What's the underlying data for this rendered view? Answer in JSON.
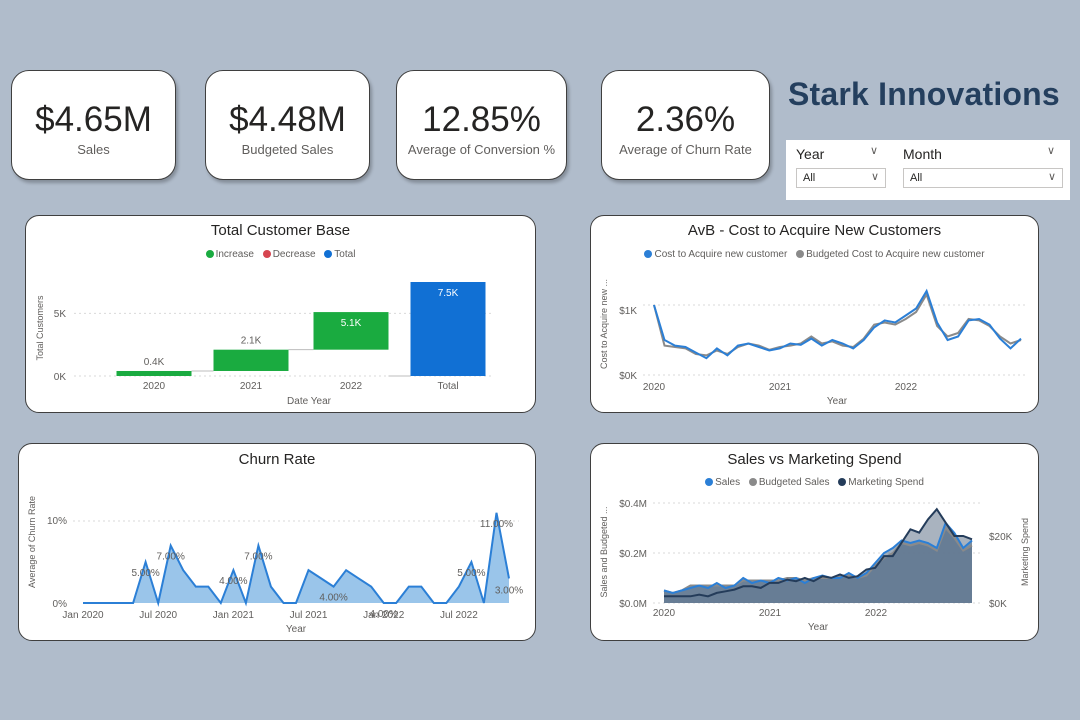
{
  "kpis": [
    {
      "value": "$4.65M",
      "label": "Sales"
    },
    {
      "value": "$4.48M",
      "label": "Budgeted Sales"
    },
    {
      "value": "12.85%",
      "label": "Average of Conversion %"
    },
    {
      "value": "2.36%",
      "label": "Average of Churn Rate"
    }
  ],
  "brand": {
    "title": "Stark Innovations"
  },
  "filters": {
    "year": {
      "label": "Year",
      "value": "All"
    },
    "month": {
      "label": "Month",
      "value": "All"
    }
  },
  "icons": {
    "dropdown": "chevron-down-icon"
  },
  "colors": {
    "increase": "#1aab40",
    "decrease": "#d64550",
    "total": "#1170d4",
    "actual_line": "#2b7fd6",
    "budget_line": "#8a8a8a",
    "marketing": "#243c5a",
    "background": "#b0bccb",
    "brand": "#243f5e"
  },
  "charts": {
    "customer_base": {
      "title": "Total Customer Base",
      "legend": [
        "Increase",
        "Decrease",
        "Total"
      ],
      "xlabel": "Date Year",
      "ylabel": "Total Customers",
      "yticks": [
        "0K",
        "5K"
      ],
      "data_labels": [
        "0.4K",
        "2.1K",
        "5.1K",
        "7.5K"
      ],
      "categories": [
        "2020",
        "2021",
        "2022",
        "Total"
      ]
    },
    "cac": {
      "title": "AvB - Cost to Acquire New Customers",
      "legend": [
        "Cost to Acquire new customer",
        "Budgeted Cost to Acquire new customer"
      ],
      "xlabel": "Year",
      "ylabel": "Cost to Acquire new ...",
      "yticks": [
        "$0K",
        "$1K"
      ],
      "xticks": [
        "2020",
        "2021",
        "2022"
      ]
    },
    "churn": {
      "title": "Churn Rate",
      "xlabel": "Year",
      "ylabel": "Average of Churn Rate",
      "yticks": [
        "0%",
        "10%"
      ],
      "xticks": [
        "Jan 2020",
        "Jul 2020",
        "Jan 2021",
        "Jul 2021",
        "Jan 2022",
        "Jul 2022"
      ],
      "data_labels": [
        "5.00%",
        "7.00%",
        "4.00%",
        "7.00%",
        "4.00%",
        "4.00%",
        "5.00%",
        "11.00%",
        "3.00%"
      ]
    },
    "sales_marketing": {
      "title": "Sales vs Marketing Spend",
      "legend": [
        "Sales",
        "Budgeted Sales",
        "Marketing Spend"
      ],
      "xlabel": "Year",
      "ylabel_left": "Sales and Budgeted ...",
      "ylabel_right": "Marketing Spend",
      "yticks_left": [
        "$0.0M",
        "$0.2M",
        "$0.4M"
      ],
      "yticks_right": [
        "$0K",
        "$20K"
      ],
      "xticks": [
        "2020",
        "2021",
        "2022"
      ]
    }
  },
  "chart_data": [
    {
      "type": "bar",
      "title": "Total Customer Base",
      "subtype": "waterfall",
      "categories": [
        "2020",
        "2021",
        "2022",
        "Total"
      ],
      "values": [
        0.4,
        2.1,
        5.1,
        7.5
      ],
      "kinds": [
        "Increase",
        "Increase",
        "Increase",
        "Total"
      ],
      "units": "K",
      "ylim": [
        0,
        8.5
      ],
      "xlabel": "Date Year",
      "ylabel": "Total Customers"
    },
    {
      "type": "line",
      "title": "AvB - Cost to Acquire New Customers",
      "x_range": [
        2020,
        2022.9
      ],
      "ylim": [
        0,
        1.3
      ],
      "units": "$K",
      "series": [
        {
          "name": "Cost to Acquire new customer",
          "values": [
            1.0,
            0.5,
            0.42,
            0.4,
            0.32,
            0.24,
            0.38,
            0.28,
            0.42,
            0.45,
            0.4,
            0.35,
            0.38,
            0.45,
            0.43,
            0.52,
            0.42,
            0.5,
            0.45,
            0.38,
            0.5,
            0.68,
            0.78,
            0.75,
            0.85,
            0.95,
            1.2,
            0.75,
            0.5,
            0.55,
            0.78,
            0.8,
            0.72,
            0.52,
            0.38,
            0.52
          ]
        },
        {
          "name": "Budgeted Cost to Acquire new customer",
          "values": [
            1.0,
            0.42,
            0.4,
            0.38,
            0.3,
            0.28,
            0.35,
            0.3,
            0.4,
            0.45,
            0.42,
            0.36,
            0.4,
            0.42,
            0.45,
            0.55,
            0.45,
            0.48,
            0.42,
            0.4,
            0.52,
            0.72,
            0.75,
            0.72,
            0.8,
            0.9,
            1.15,
            0.7,
            0.55,
            0.6,
            0.8,
            0.78,
            0.7,
            0.55,
            0.45,
            0.5
          ]
        }
      ]
    },
    {
      "type": "area",
      "title": "Churn Rate",
      "x_range": [
        "Jan 2020",
        "Dec 2022"
      ],
      "ylim": [
        0,
        12
      ],
      "units": "%",
      "series": [
        {
          "name": "Average of Churn Rate",
          "values": [
            0,
            0,
            0,
            0,
            0,
            5,
            0,
            7,
            4,
            2,
            2,
            0,
            4,
            0,
            7,
            2,
            0,
            0,
            4,
            3,
            2,
            4,
            3,
            2,
            0,
            0,
            2,
            2,
            0,
            0,
            2,
            5,
            0,
            11,
            3
          ]
        }
      ]
    },
    {
      "type": "area",
      "title": "Sales vs Marketing Spend",
      "x_range": [
        2020,
        2022.9
      ],
      "ylim": [
        0,
        0.42
      ],
      "ylim_right": [
        0,
        30
      ],
      "units_left": "$M",
      "units_right": "$K",
      "series": [
        {
          "name": "Sales",
          "axis": "left",
          "values": [
            0.05,
            0.04,
            0.05,
            0.06,
            0.07,
            0.06,
            0.08,
            0.06,
            0.07,
            0.1,
            0.08,
            0.09,
            0.08,
            0.1,
            0.09,
            0.1,
            0.08,
            0.1,
            0.11,
            0.1,
            0.1,
            0.12,
            0.1,
            0.12,
            0.16,
            0.2,
            0.22,
            0.25,
            0.24,
            0.25,
            0.24,
            0.22,
            0.32,
            0.28,
            0.22,
            0.25
          ]
        },
        {
          "name": "Budgeted Sales",
          "axis": "left",
          "values": [
            0.05,
            0.04,
            0.05,
            0.07,
            0.07,
            0.07,
            0.07,
            0.07,
            0.07,
            0.09,
            0.09,
            0.09,
            0.09,
            0.09,
            0.1,
            0.1,
            0.09,
            0.1,
            0.1,
            0.1,
            0.11,
            0.11,
            0.1,
            0.11,
            0.15,
            0.18,
            0.2,
            0.24,
            0.23,
            0.24,
            0.23,
            0.21,
            0.3,
            0.26,
            0.21,
            0.23
          ]
        },
        {
          "name": "Marketing Spend",
          "axis": "right",
          "values": [
            2,
            2,
            2,
            2,
            2.5,
            2,
            3,
            3.5,
            4,
            5,
            5,
            4.5,
            6,
            6,
            7,
            6.5,
            7.5,
            6.5,
            8,
            7.5,
            8.5,
            7.5,
            8,
            10,
            10.5,
            14,
            14,
            18,
            22,
            21,
            25,
            28,
            24,
            20,
            20,
            19
          ]
        }
      ]
    }
  ]
}
